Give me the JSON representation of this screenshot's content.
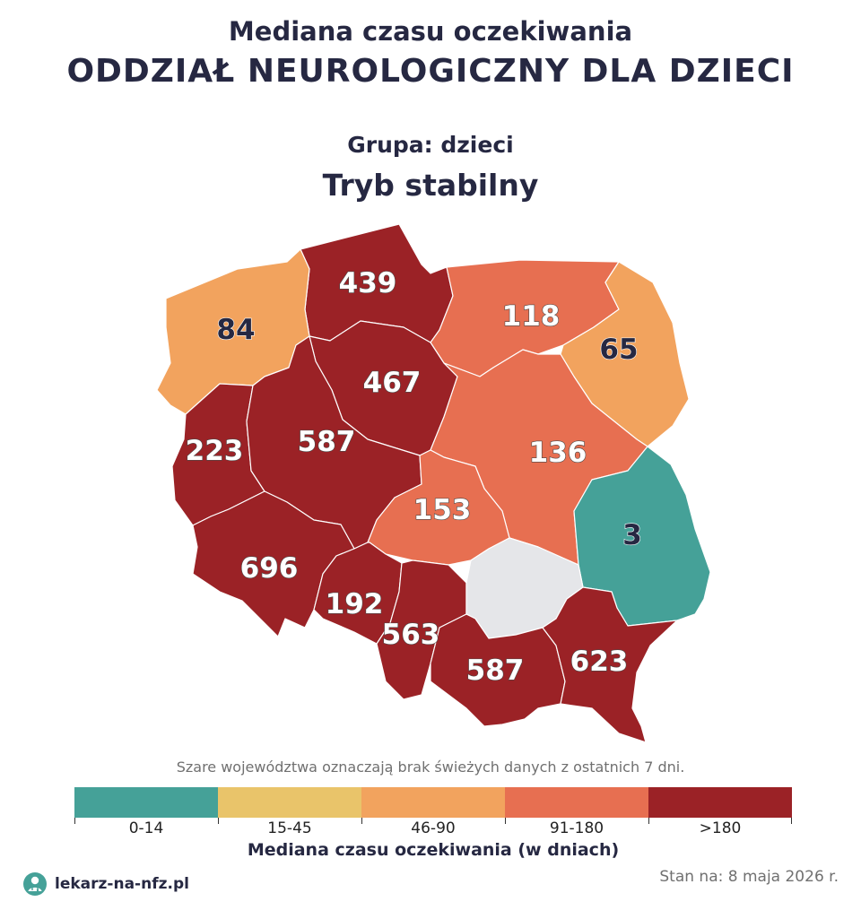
{
  "header": {
    "subtitle": "Mediana czasu oczekiwania",
    "title": "ODDZIAŁ NEUROLOGICZNY DLA DZIECI",
    "group": "Grupa: dzieci",
    "mode": "Tryb stabilny"
  },
  "regions": [
    {
      "id": "pomorskie",
      "value": "439",
      "color": "#9b2226",
      "text_color": "#ffffff"
    },
    {
      "id": "zachodniopomorskie",
      "value": "84",
      "color": "#f2a35e",
      "text_color": "#262842"
    },
    {
      "id": "warminsko-mazurskie",
      "value": "118",
      "color": "#e76f51",
      "text_color": "#ffffff"
    },
    {
      "id": "podlaskie",
      "value": "65",
      "color": "#f2a35e",
      "text_color": "#262842"
    },
    {
      "id": "kujawsko-pomorskie",
      "value": "467",
      "color": "#9b2226",
      "text_color": "#ffffff"
    },
    {
      "id": "lubuskie",
      "value": "223",
      "color": "#9b2226",
      "text_color": "#ffffff"
    },
    {
      "id": "wielkopolskie",
      "value": "587",
      "color": "#9b2226",
      "text_color": "#ffffff"
    },
    {
      "id": "mazowieckie",
      "value": "136",
      "color": "#e76f51",
      "text_color": "#ffffff"
    },
    {
      "id": "lodzkie",
      "value": "153",
      "color": "#e76f51",
      "text_color": "#ffffff"
    },
    {
      "id": "lubelskie",
      "value": "3",
      "color": "#45a198",
      "text_color": "#262842"
    },
    {
      "id": "dolnoslaskie",
      "value": "696",
      "color": "#9b2226",
      "text_color": "#ffffff"
    },
    {
      "id": "opolskie",
      "value": "192",
      "color": "#9b2226",
      "text_color": "#ffffff"
    },
    {
      "id": "slaskie",
      "value": "563",
      "color": "#9b2226",
      "text_color": "#ffffff"
    },
    {
      "id": "swietokrzyskie",
      "value": "",
      "color": "#e5e6e9",
      "text_color": "#262842"
    },
    {
      "id": "malopolskie",
      "value": "587",
      "color": "#9b2226",
      "text_color": "#ffffff"
    },
    {
      "id": "podkarpackie",
      "value": "623",
      "color": "#9b2226",
      "text_color": "#ffffff"
    }
  ],
  "note": "Szare województwa oznaczają brak świeżych danych z ostatnich 7 dni.",
  "legend": {
    "title": "Mediana czasu oczekiwania (w dniach)",
    "items": [
      {
        "label": "0-14",
        "color": "#45a198"
      },
      {
        "label": "15-45",
        "color": "#e9c46a"
      },
      {
        "label": "46-90",
        "color": "#f2a35e"
      },
      {
        "label": "91-180",
        "color": "#e76f51"
      },
      {
        "label": ">180",
        "color": "#9b2226"
      }
    ]
  },
  "footer": {
    "brand": "lekarz-na-nfz.pl",
    "date": "Stan na: 8 maja 2026 r.",
    "logo_icon": "doctor-icon"
  }
}
